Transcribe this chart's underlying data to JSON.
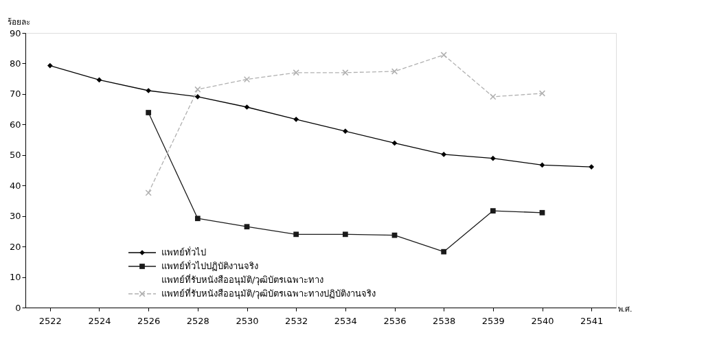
{
  "chart_data": {
    "type": "line",
    "categories": [
      "2522",
      "2524",
      "2526",
      "2528",
      "2530",
      "2532",
      "2534",
      "2536",
      "2538",
      "2539",
      "2540",
      "2541"
    ],
    "ylabel": "ร้อยละ",
    "xlabel": "พ.ศ.",
    "ylim": [
      0,
      90
    ],
    "yticks": [
      0,
      10,
      20,
      30,
      40,
      50,
      60,
      70,
      80,
      90
    ],
    "grid": false,
    "legend": "bottom left",
    "series": [
      {
        "name": "แพทย์ทั่วไป",
        "color": "#000000",
        "marker": "diamond",
        "line_style": "solid",
        "values": [
          79.3,
          74.6,
          71.1,
          69.1,
          65.7,
          61.7,
          57.8,
          53.9,
          50.2,
          48.9,
          46.7,
          46.1
        ]
      },
      {
        "name": "แพทย์ทั่วไปปฏิบัติงานจริง",
        "color": "#1a1a1a",
        "marker": "square",
        "line_style": "solid",
        "values": [
          null,
          null,
          63.9,
          29.2,
          26.5,
          24.0,
          24.0,
          23.7,
          18.3,
          31.7,
          31.1,
          null
        ]
      },
      {
        "name": "แพทย์ที่รับหนังสืออนุมัติ/วุฒิบัตรเฉพาะทาง",
        "marker": "none",
        "line_style": "solid",
        "values": [
          null,
          null,
          null,
          null,
          null,
          null,
          null,
          null,
          null,
          null,
          null,
          null
        ]
      },
      {
        "name": "แพทย์ที่รับหนังสืออนุมัติ/วุฒิบัตรเฉพาะทางปฏิบัติงานจริง",
        "color": "#b0b0b0",
        "marker": "cross",
        "line_style": "dashed",
        "values": [
          null,
          null,
          37.6,
          71.5,
          74.8,
          77.0,
          77.0,
          77.4,
          82.8,
          69.1,
          70.2,
          null
        ]
      }
    ]
  }
}
